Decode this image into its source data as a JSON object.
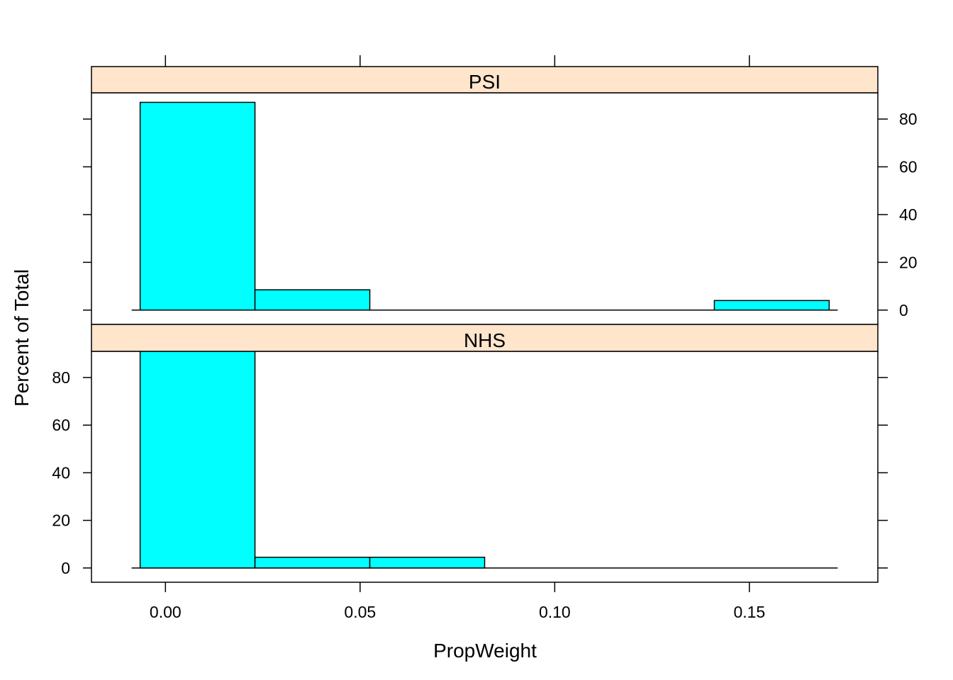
{
  "chart_data": {
    "type": "bar",
    "subtype": "histogram-trellis",
    "xlabel": "PropWeight",
    "ylabel": "Percent of Total",
    "xlim": [
      -0.019,
      0.183
    ],
    "ylim": [
      -6,
      91
    ],
    "x_ticks": [
      0.0,
      0.05,
      0.1,
      0.15
    ],
    "x_tick_labels": [
      "0.00",
      "0.05",
      "0.10",
      "0.15"
    ],
    "y_ticks": [
      0,
      20,
      40,
      60,
      80
    ],
    "y_tick_labels": [
      "0",
      "20",
      "40",
      "60",
      "80"
    ],
    "bin_edges": [
      -0.0065,
      0.023,
      0.0525,
      0.082,
      0.1115,
      0.141,
      0.1705
    ],
    "colors": {
      "bar_fill": "#00FFFF",
      "bar_stroke": "#000000",
      "strip_fill": "#FFE5CC"
    },
    "panels": [
      {
        "strip": "PSI",
        "values": [
          87,
          8.5,
          0,
          0,
          0,
          4
        ],
        "y_axis_side": "right",
        "x_axis_side": "top"
      },
      {
        "strip": "NHS",
        "values": [
          91,
          4.5,
          4.5,
          0,
          0,
          0
        ],
        "y_axis_side": "left",
        "x_axis_side": "bottom"
      }
    ]
  }
}
